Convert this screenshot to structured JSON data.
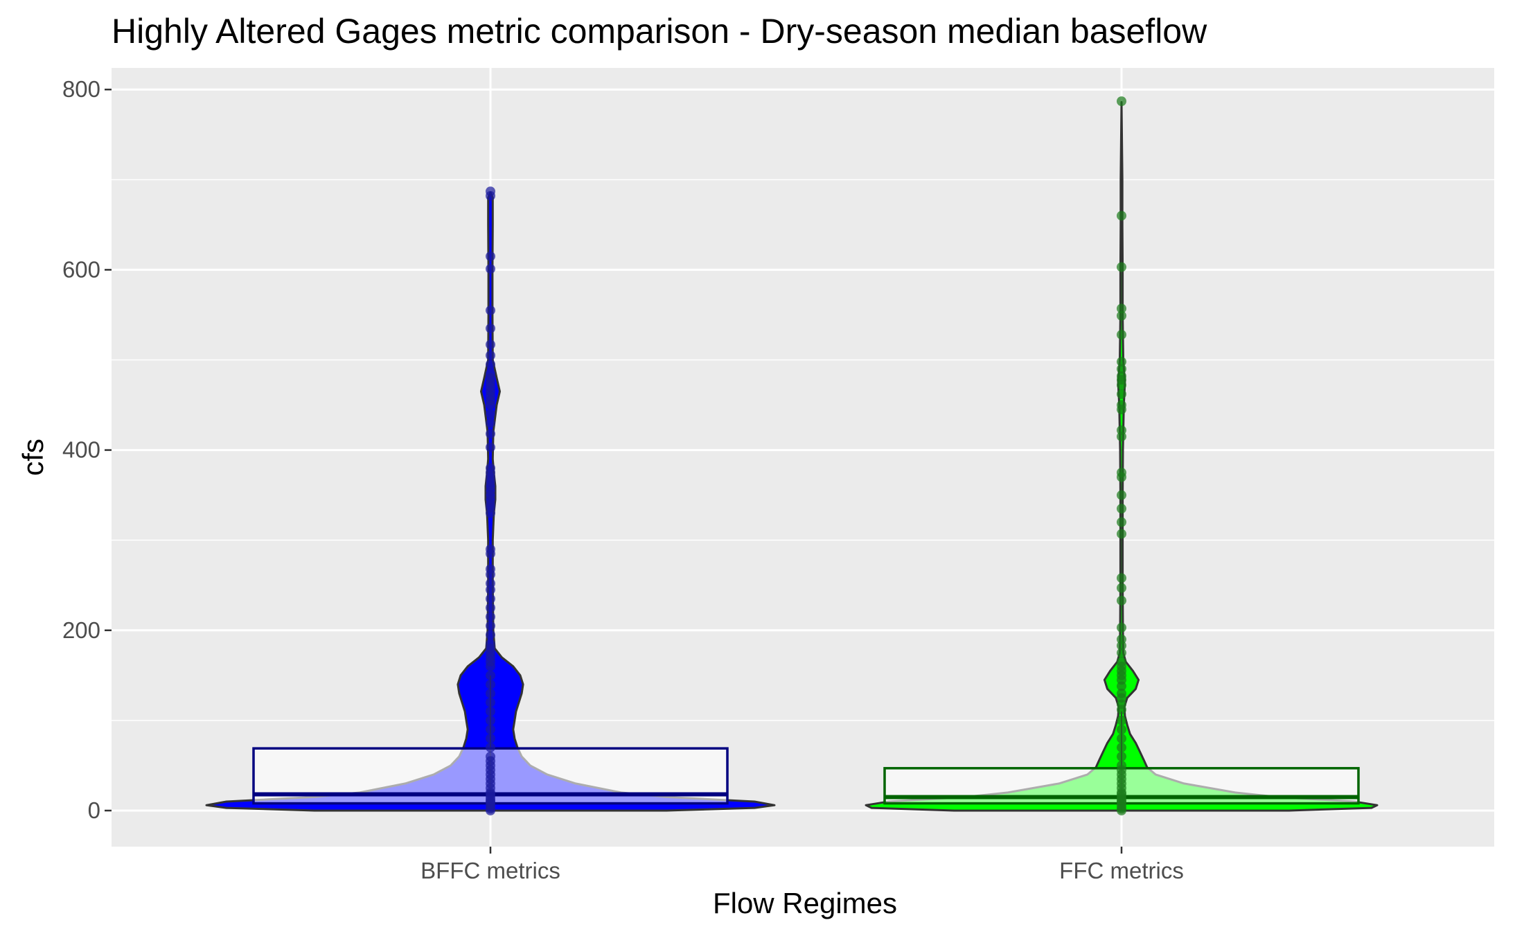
{
  "chart_data": {
    "type": "violin",
    "title": "Highly Altered Gages metric comparison - Dry-season median baseflow",
    "xlabel": "Flow Regimes",
    "ylabel": "cfs",
    "ylim": [
      -40,
      824
    ],
    "yticks": [
      0,
      200,
      400,
      600,
      800
    ],
    "grid": true,
    "legend": "none",
    "categories": [
      "BFFC metrics",
      "FFC metrics"
    ],
    "series": [
      {
        "category": "BFFC metrics",
        "color": "#0000ff",
        "box_edge": "#000080",
        "points_color": "#1a1a9c",
        "box": {
          "q1": 8,
          "median": 18,
          "q3": 69,
          "whisker_low": 0,
          "whisker_high": 150
        },
        "violin_profile": [
          [
            0,
            0.62
          ],
          [
            3,
            0.93
          ],
          [
            6,
            1.0
          ],
          [
            10,
            0.93
          ],
          [
            15,
            0.62
          ],
          [
            20,
            0.46
          ],
          [
            30,
            0.3
          ],
          [
            40,
            0.2
          ],
          [
            50,
            0.14
          ],
          [
            60,
            0.11
          ],
          [
            70,
            0.095
          ],
          [
            80,
            0.085
          ],
          [
            90,
            0.08
          ],
          [
            100,
            0.085
          ],
          [
            110,
            0.09
          ],
          [
            120,
            0.1
          ],
          [
            130,
            0.11
          ],
          [
            140,
            0.115
          ],
          [
            150,
            0.105
          ],
          [
            160,
            0.08
          ],
          [
            170,
            0.04
          ],
          [
            180,
            0.015
          ],
          [
            200,
            0.01
          ],
          [
            250,
            0.008
          ],
          [
            300,
            0.008
          ],
          [
            330,
            0.012
          ],
          [
            345,
            0.017
          ],
          [
            360,
            0.017
          ],
          [
            375,
            0.012
          ],
          [
            390,
            0.008
          ],
          [
            420,
            0.01
          ],
          [
            450,
            0.022
          ],
          [
            465,
            0.033
          ],
          [
            480,
            0.022
          ],
          [
            500,
            0.008
          ],
          [
            550,
            0.007
          ],
          [
            600,
            0.007
          ],
          [
            650,
            0.008
          ],
          [
            680,
            0.008
          ],
          [
            686,
            0
          ]
        ],
        "points": [
          0,
          2,
          5,
          8,
          10,
          12,
          15,
          18,
          20,
          25,
          30,
          35,
          40,
          45,
          50,
          55,
          60,
          70,
          80,
          90,
          100,
          110,
          120,
          130,
          140,
          150,
          160,
          165,
          170,
          175,
          180,
          185,
          195,
          205,
          215,
          225,
          235,
          245,
          252,
          262,
          268,
          285,
          290,
          330,
          336,
          340,
          345,
          350,
          355,
          360,
          365,
          370,
          375,
          380,
          403,
          418,
          430,
          440,
          450,
          455,
          460,
          465,
          470,
          475,
          480,
          485,
          495,
          505,
          517,
          535,
          555,
          601,
          615,
          682,
          687
        ]
      },
      {
        "category": "FFC metrics",
        "color": "#00ff00",
        "box_edge": "#006400",
        "points_color": "#1a7a1a",
        "box": {
          "q1": 8,
          "median": 15,
          "q3": 47,
          "whisker_low": 0,
          "whisker_high": 110
        },
        "violin_profile": [
          [
            0,
            0.59
          ],
          [
            3,
            0.88
          ],
          [
            6,
            0.9
          ],
          [
            10,
            0.82
          ],
          [
            15,
            0.55
          ],
          [
            20,
            0.4
          ],
          [
            30,
            0.22
          ],
          [
            40,
            0.12
          ],
          [
            48,
            0.09
          ],
          [
            55,
            0.08
          ],
          [
            65,
            0.065
          ],
          [
            75,
            0.05
          ],
          [
            85,
            0.03
          ],
          [
            95,
            0.02
          ],
          [
            105,
            0.012
          ],
          [
            115,
            0.01
          ],
          [
            125,
            0.02
          ],
          [
            135,
            0.05
          ],
          [
            145,
            0.06
          ],
          [
            155,
            0.04
          ],
          [
            165,
            0.015
          ],
          [
            175,
            0.006
          ],
          [
            200,
            0.005
          ],
          [
            250,
            0.004
          ],
          [
            300,
            0.004
          ],
          [
            350,
            0.004
          ],
          [
            400,
            0.005
          ],
          [
            450,
            0.008
          ],
          [
            475,
            0.012
          ],
          [
            500,
            0.006
          ],
          [
            550,
            0.004
          ],
          [
            600,
            0.004
          ],
          [
            650,
            0.003
          ],
          [
            700,
            0.003
          ],
          [
            786,
            0
          ]
        ],
        "points": [
          0,
          2,
          5,
          8,
          10,
          12,
          15,
          18,
          20,
          25,
          30,
          35,
          40,
          45,
          50,
          60,
          70,
          80,
          90,
          100,
          112,
          118,
          125,
          130,
          138,
          145,
          150,
          155,
          160,
          165,
          175,
          183,
          190,
          203,
          233,
          247,
          258,
          307,
          320,
          335,
          350,
          370,
          375,
          415,
          422,
          445,
          450,
          462,
          472,
          478,
          482,
          490,
          498,
          528,
          549,
          557,
          603,
          660,
          787
        ]
      }
    ]
  }
}
